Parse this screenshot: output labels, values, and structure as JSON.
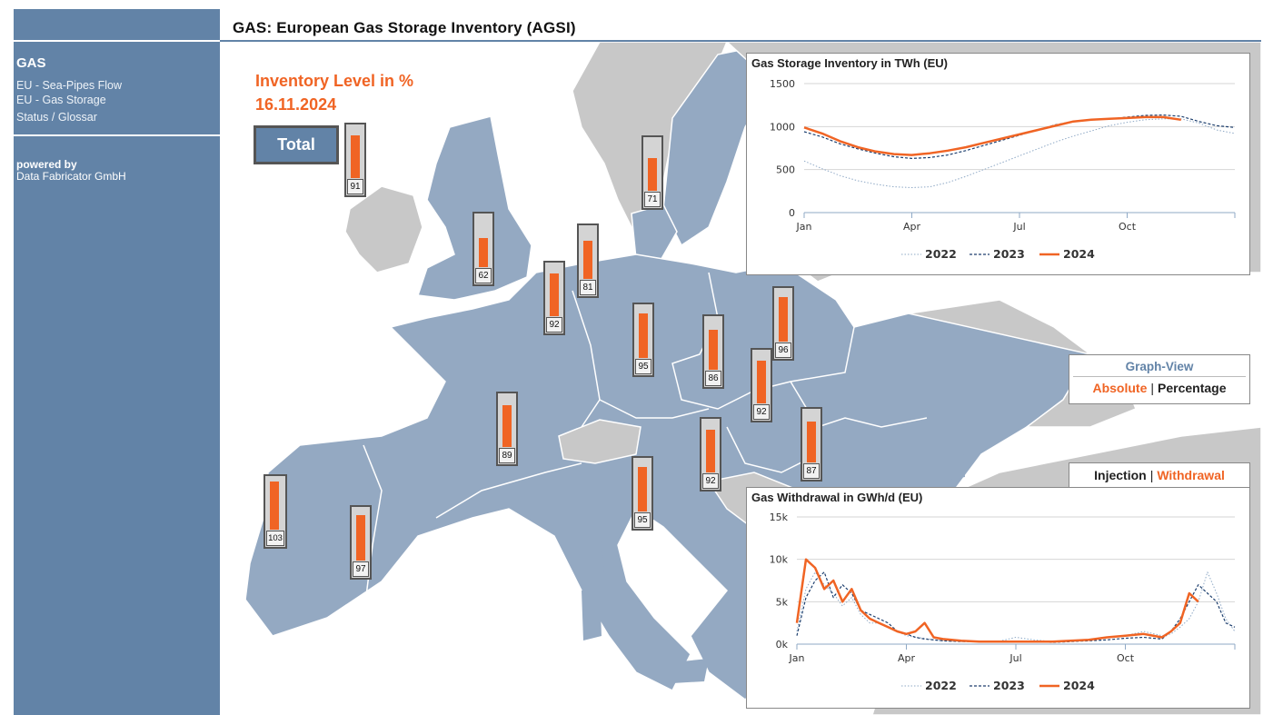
{
  "sidebar": {
    "section_title": "GAS",
    "links": [
      "EU - Sea-Pipes Flow",
      "EU - Gas Storage",
      "Status / Glossar"
    ],
    "powered_by": "powered by",
    "company": "Data Fabricator GmbH"
  },
  "page": {
    "title": "GAS: European Gas Storage Inventory (AGSI)"
  },
  "map": {
    "inventory_title": "Inventory Level in %",
    "date": "16.11.2024",
    "total_button": "Total",
    "gauges": [
      91,
      62,
      92,
      81,
      71,
      95,
      86,
      96,
      92,
      89,
      92,
      87,
      95,
      103,
      97
    ]
  },
  "graph_view": {
    "title": "Graph-View",
    "absolute": "Absolute",
    "percentage": "Percentage",
    "injection": "Injection",
    "withdrawal": "Withdrawal"
  },
  "colors": {
    "accent": "#f06424",
    "brand": "#6283a7",
    "map_land": "#94a9c2",
    "map_other": "#c8c8c8"
  },
  "chart_data": [
    {
      "type": "line",
      "title": "Gas Storage Inventory in TWh (EU)",
      "xlabel": "",
      "ylabel": "",
      "x_ticks": [
        "Jan",
        "Apr",
        "Jul",
        "Oct"
      ],
      "y_ticks": [
        "0",
        "500",
        "1000",
        "1500"
      ],
      "ylim": [
        0,
        1500
      ],
      "x_months": [
        0,
        0.5,
        1,
        1.5,
        2,
        2.5,
        3,
        3.5,
        4,
        4.5,
        5,
        5.5,
        6,
        6.5,
        7,
        7.5,
        8,
        8.5,
        9,
        9.5,
        10,
        10.5,
        11,
        11.5,
        12
      ],
      "series": [
        {
          "name": "2022",
          "style": "dotted",
          "color": "#8fa9c6",
          "values": [
            600,
            510,
            430,
            370,
            330,
            300,
            290,
            300,
            350,
            420,
            500,
            580,
            660,
            740,
            820,
            890,
            950,
            1010,
            1050,
            1080,
            1090,
            1090,
            1040,
            960,
            920
          ]
        },
        {
          "name": "2023",
          "style": "dashed",
          "color": "#1d3f6e",
          "values": [
            940,
            880,
            800,
            740,
            690,
            650,
            630,
            640,
            670,
            720,
            780,
            840,
            900,
            960,
            1020,
            1060,
            1080,
            1090,
            1110,
            1130,
            1135,
            1120,
            1060,
            1010,
            990
          ]
        },
        {
          "name": "2024",
          "style": "solid",
          "color": "#f06424",
          "values": [
            990,
            920,
            830,
            760,
            710,
            680,
            670,
            690,
            720,
            760,
            810,
            860,
            910,
            960,
            1010,
            1060,
            1080,
            1090,
            1100,
            1110,
            1110,
            1080
          ]
        }
      ],
      "legend": "bottom"
    },
    {
      "type": "line",
      "title": "Gas Withdrawal in GWh/d (EU)",
      "xlabel": "",
      "ylabel": "",
      "x_ticks": [
        "Jan",
        "Apr",
        "Jul",
        "Oct"
      ],
      "y_ticks": [
        "0k",
        "5k",
        "10k",
        "15k"
      ],
      "ylim": [
        0,
        15000
      ],
      "x_months": [
        0,
        0.25,
        0.5,
        0.75,
        1,
        1.25,
        1.5,
        1.75,
        2,
        2.25,
        2.5,
        2.75,
        3,
        3.25,
        3.5,
        3.75,
        4,
        4.5,
        5,
        5.5,
        6,
        6.5,
        7,
        7.5,
        8,
        8.5,
        9,
        9.5,
        10,
        10.25,
        10.5,
        10.75,
        11,
        11.25,
        11.5,
        11.75,
        12
      ],
      "series": [
        {
          "name": "2022",
          "style": "dotted",
          "color": "#8fa9c6",
          "values": [
            1500,
            6500,
            8500,
            7000,
            6000,
            4500,
            5500,
            3500,
            2500,
            2500,
            2000,
            1500,
            1000,
            800,
            700,
            500,
            400,
            300,
            300,
            300,
            800,
            500,
            300,
            400,
            500,
            800,
            1000,
            1500,
            1000,
            1200,
            2000,
            3000,
            5000,
            8500,
            6000,
            3000,
            1500
          ]
        },
        {
          "name": "2023",
          "style": "dashed",
          "color": "#1d3f6e",
          "values": [
            1000,
            5500,
            7500,
            8500,
            5500,
            7000,
            6000,
            4000,
            3500,
            3000,
            2500,
            1500,
            1200,
            800,
            600,
            500,
            400,
            300,
            300,
            300,
            300,
            300,
            200,
            300,
            400,
            500,
            700,
            800,
            600,
            1500,
            3000,
            5000,
            7000,
            6000,
            5000,
            2500,
            2000
          ]
        },
        {
          "name": "2024",
          "style": "solid",
          "color": "#f06424",
          "values": [
            2500,
            10000,
            9000,
            6500,
            7500,
            5000,
            6500,
            4000,
            3000,
            2500,
            2000,
            1500,
            1200,
            1500,
            2500,
            800,
            600,
            400,
            300,
            300,
            300,
            300,
            300,
            400,
            500,
            800,
            1000,
            1200,
            800,
            1500,
            2500,
            6000,
            5000
          ]
        }
      ],
      "legend": "bottom"
    }
  ]
}
